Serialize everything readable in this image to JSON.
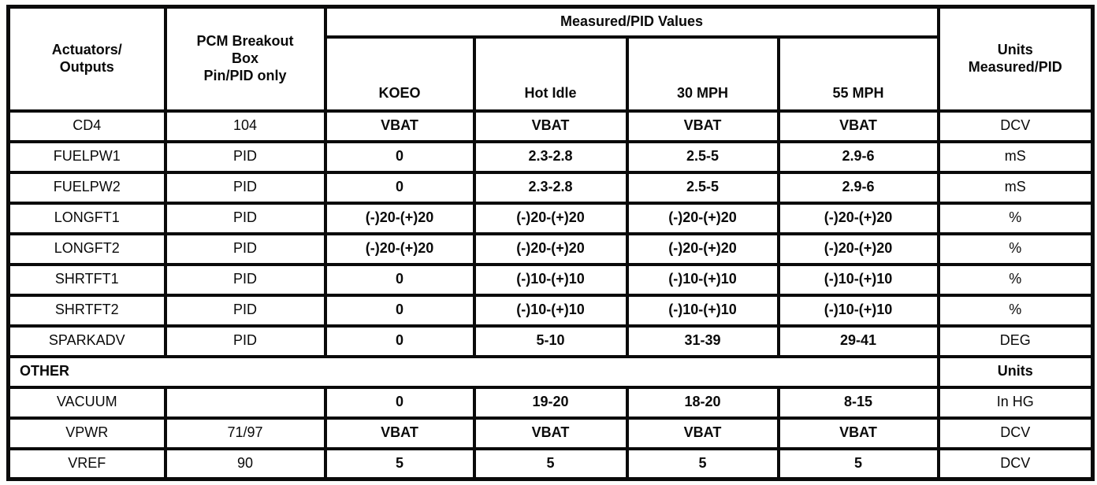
{
  "table": {
    "header": {
      "actuators": "Actuators/\nOutputs",
      "pcm_breakout": "PCM Breakout\nBox\nPin/PID only",
      "measured_values": "Measured/PID Values",
      "koeo": "KOEO",
      "hot_idle": "Hot Idle",
      "mph30": "30 MPH",
      "mph55": "55 MPH",
      "units": "Units\nMeasured/PID"
    },
    "rows": [
      {
        "cells": [
          "CD4",
          "104",
          "VBAT",
          "VBAT",
          "VBAT",
          "VBAT",
          "DCV"
        ]
      },
      {
        "cells": [
          "FUELPW1",
          "PID",
          "0",
          "2.3-2.8",
          "2.5-5",
          "2.9-6",
          "mS"
        ]
      },
      {
        "cells": [
          "FUELPW2",
          "PID",
          "0",
          "2.3-2.8",
          "2.5-5",
          "2.9-6",
          "mS"
        ]
      },
      {
        "cells": [
          "LONGFT1",
          "PID",
          "(-)20-(+)20",
          "(-)20-(+)20",
          "(-)20-(+)20",
          "(-)20-(+)20",
          "%"
        ]
      },
      {
        "cells": [
          "LONGFT2",
          "PID",
          "(-)20-(+)20",
          "(-)20-(+)20",
          "(-)20-(+)20",
          "(-)20-(+)20",
          "%"
        ]
      },
      {
        "cells": [
          "SHRTFT1",
          "PID",
          "0",
          "(-)10-(+)10",
          "(-)10-(+)10",
          "(-)10-(+)10",
          "%"
        ]
      },
      {
        "cells": [
          "SHRTFT2",
          "PID",
          "0",
          "(-)10-(+)10",
          "(-)10-(+)10",
          "(-)10-(+)10",
          "%"
        ]
      },
      {
        "cells": [
          "SPARKADV",
          "PID",
          "0",
          "5-10",
          "31-39",
          "29-41",
          "DEG"
        ]
      },
      {
        "section": true,
        "label": "OTHER",
        "units": "Units"
      },
      {
        "cells": [
          "VACUUM",
          "",
          "0",
          "19-20",
          "18-20",
          "8-15",
          "In HG"
        ]
      },
      {
        "cells": [
          "VPWR",
          "71/97",
          "VBAT",
          "VBAT",
          "VBAT",
          "VBAT",
          "DCV"
        ]
      },
      {
        "cells": [
          "VREF",
          "90",
          "5",
          "5",
          "5",
          "5",
          "DCV"
        ]
      }
    ]
  }
}
